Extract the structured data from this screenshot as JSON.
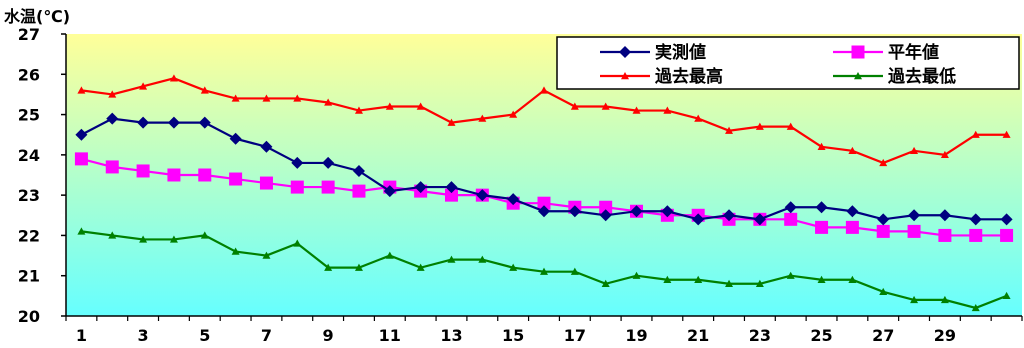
{
  "chart_data": {
    "type": "line",
    "ylabel": "水温(℃)",
    "ylim": [
      20,
      27
    ],
    "yticks": [
      20,
      21,
      22,
      23,
      24,
      25,
      26,
      27
    ],
    "x": [
      1,
      2,
      3,
      4,
      5,
      6,
      7,
      8,
      9,
      10,
      11,
      12,
      13,
      14,
      15,
      16,
      17,
      18,
      19,
      20,
      21,
      22,
      23,
      24,
      25,
      26,
      27,
      28,
      29,
      30,
      31
    ],
    "xtick_labels": [
      "1",
      "3",
      "5",
      "7",
      "9",
      "11",
      "13",
      "15",
      "17",
      "19",
      "21",
      "23",
      "25",
      "27",
      "29"
    ],
    "xtick_values": [
      1,
      3,
      5,
      7,
      9,
      11,
      13,
      15,
      17,
      19,
      21,
      23,
      25,
      27,
      29
    ],
    "background_gradient": [
      "#ffff99",
      "#66ffff"
    ],
    "grid": false,
    "legend_position": "top-right",
    "series": [
      {
        "name": "実測値",
        "color": "#000080",
        "marker": "diamond",
        "values": [
          24.5,
          24.9,
          24.8,
          24.8,
          24.8,
          24.4,
          24.2,
          23.8,
          23.8,
          23.6,
          23.1,
          23.2,
          23.2,
          23.0,
          22.9,
          22.6,
          22.6,
          22.5,
          22.6,
          22.6,
          22.4,
          22.5,
          22.4,
          22.7,
          22.7,
          22.6,
          22.4,
          22.5,
          22.5,
          22.4,
          22.4
        ]
      },
      {
        "name": "平年値",
        "color": "#ff00ff",
        "marker": "square",
        "values": [
          23.9,
          23.7,
          23.6,
          23.5,
          23.5,
          23.4,
          23.3,
          23.2,
          23.2,
          23.1,
          23.2,
          23.1,
          23.0,
          23.0,
          22.8,
          22.8,
          22.7,
          22.7,
          22.6,
          22.5,
          22.5,
          22.4,
          22.4,
          22.4,
          22.2,
          22.2,
          22.1,
          22.1,
          22.0,
          22.0,
          22.0
        ]
      },
      {
        "name": "過去最高",
        "color": "#ff0000",
        "marker": "triangle",
        "values": [
          25.6,
          25.5,
          25.7,
          25.9,
          25.6,
          25.4,
          25.4,
          25.4,
          25.3,
          25.1,
          25.2,
          25.2,
          24.8,
          24.9,
          25.0,
          25.6,
          25.2,
          25.2,
          25.1,
          25.1,
          24.9,
          24.6,
          24.7,
          24.7,
          24.2,
          24.1,
          23.8,
          24.1,
          24.0,
          24.5,
          24.5
        ]
      },
      {
        "name": "過去最低",
        "color": "#008000",
        "marker": "triangle",
        "values": [
          22.1,
          22.0,
          21.9,
          21.9,
          22.0,
          21.6,
          21.5,
          21.8,
          21.2,
          21.2,
          21.5,
          21.2,
          21.4,
          21.4,
          21.2,
          21.1,
          21.1,
          20.8,
          21.0,
          20.9,
          20.9,
          20.8,
          20.8,
          21.0,
          20.9,
          20.9,
          20.6,
          20.4,
          20.4,
          20.2,
          20.5
        ]
      }
    ]
  }
}
